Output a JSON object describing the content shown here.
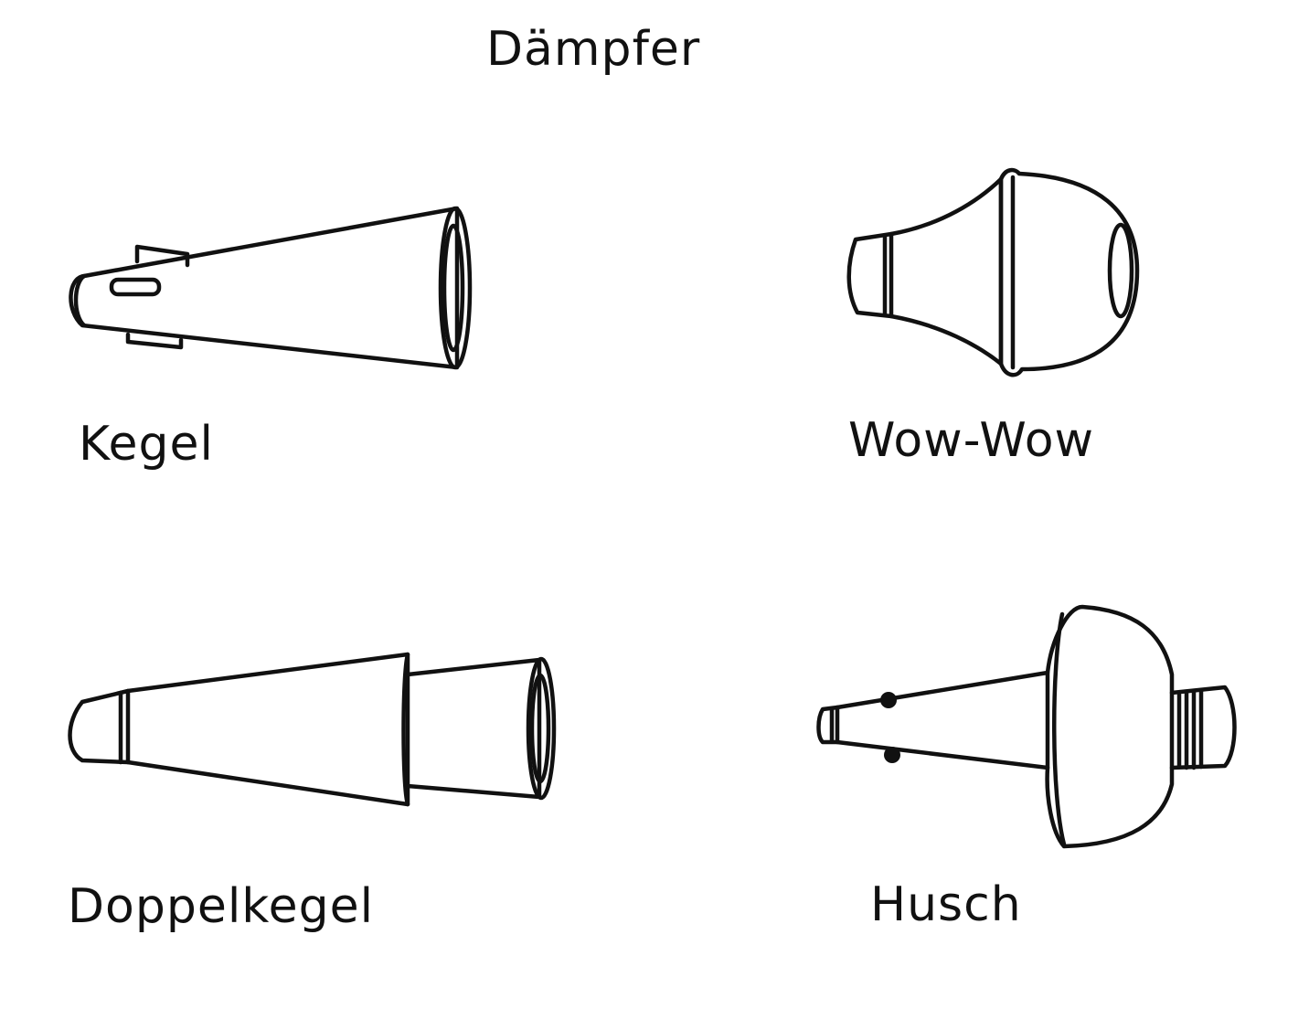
{
  "title": "Dämpfer",
  "mutes": [
    {
      "label": "Kegel"
    },
    {
      "label": "Wow-Wow"
    },
    {
      "label": "Doppelkegel"
    },
    {
      "label": "Husch"
    }
  ]
}
